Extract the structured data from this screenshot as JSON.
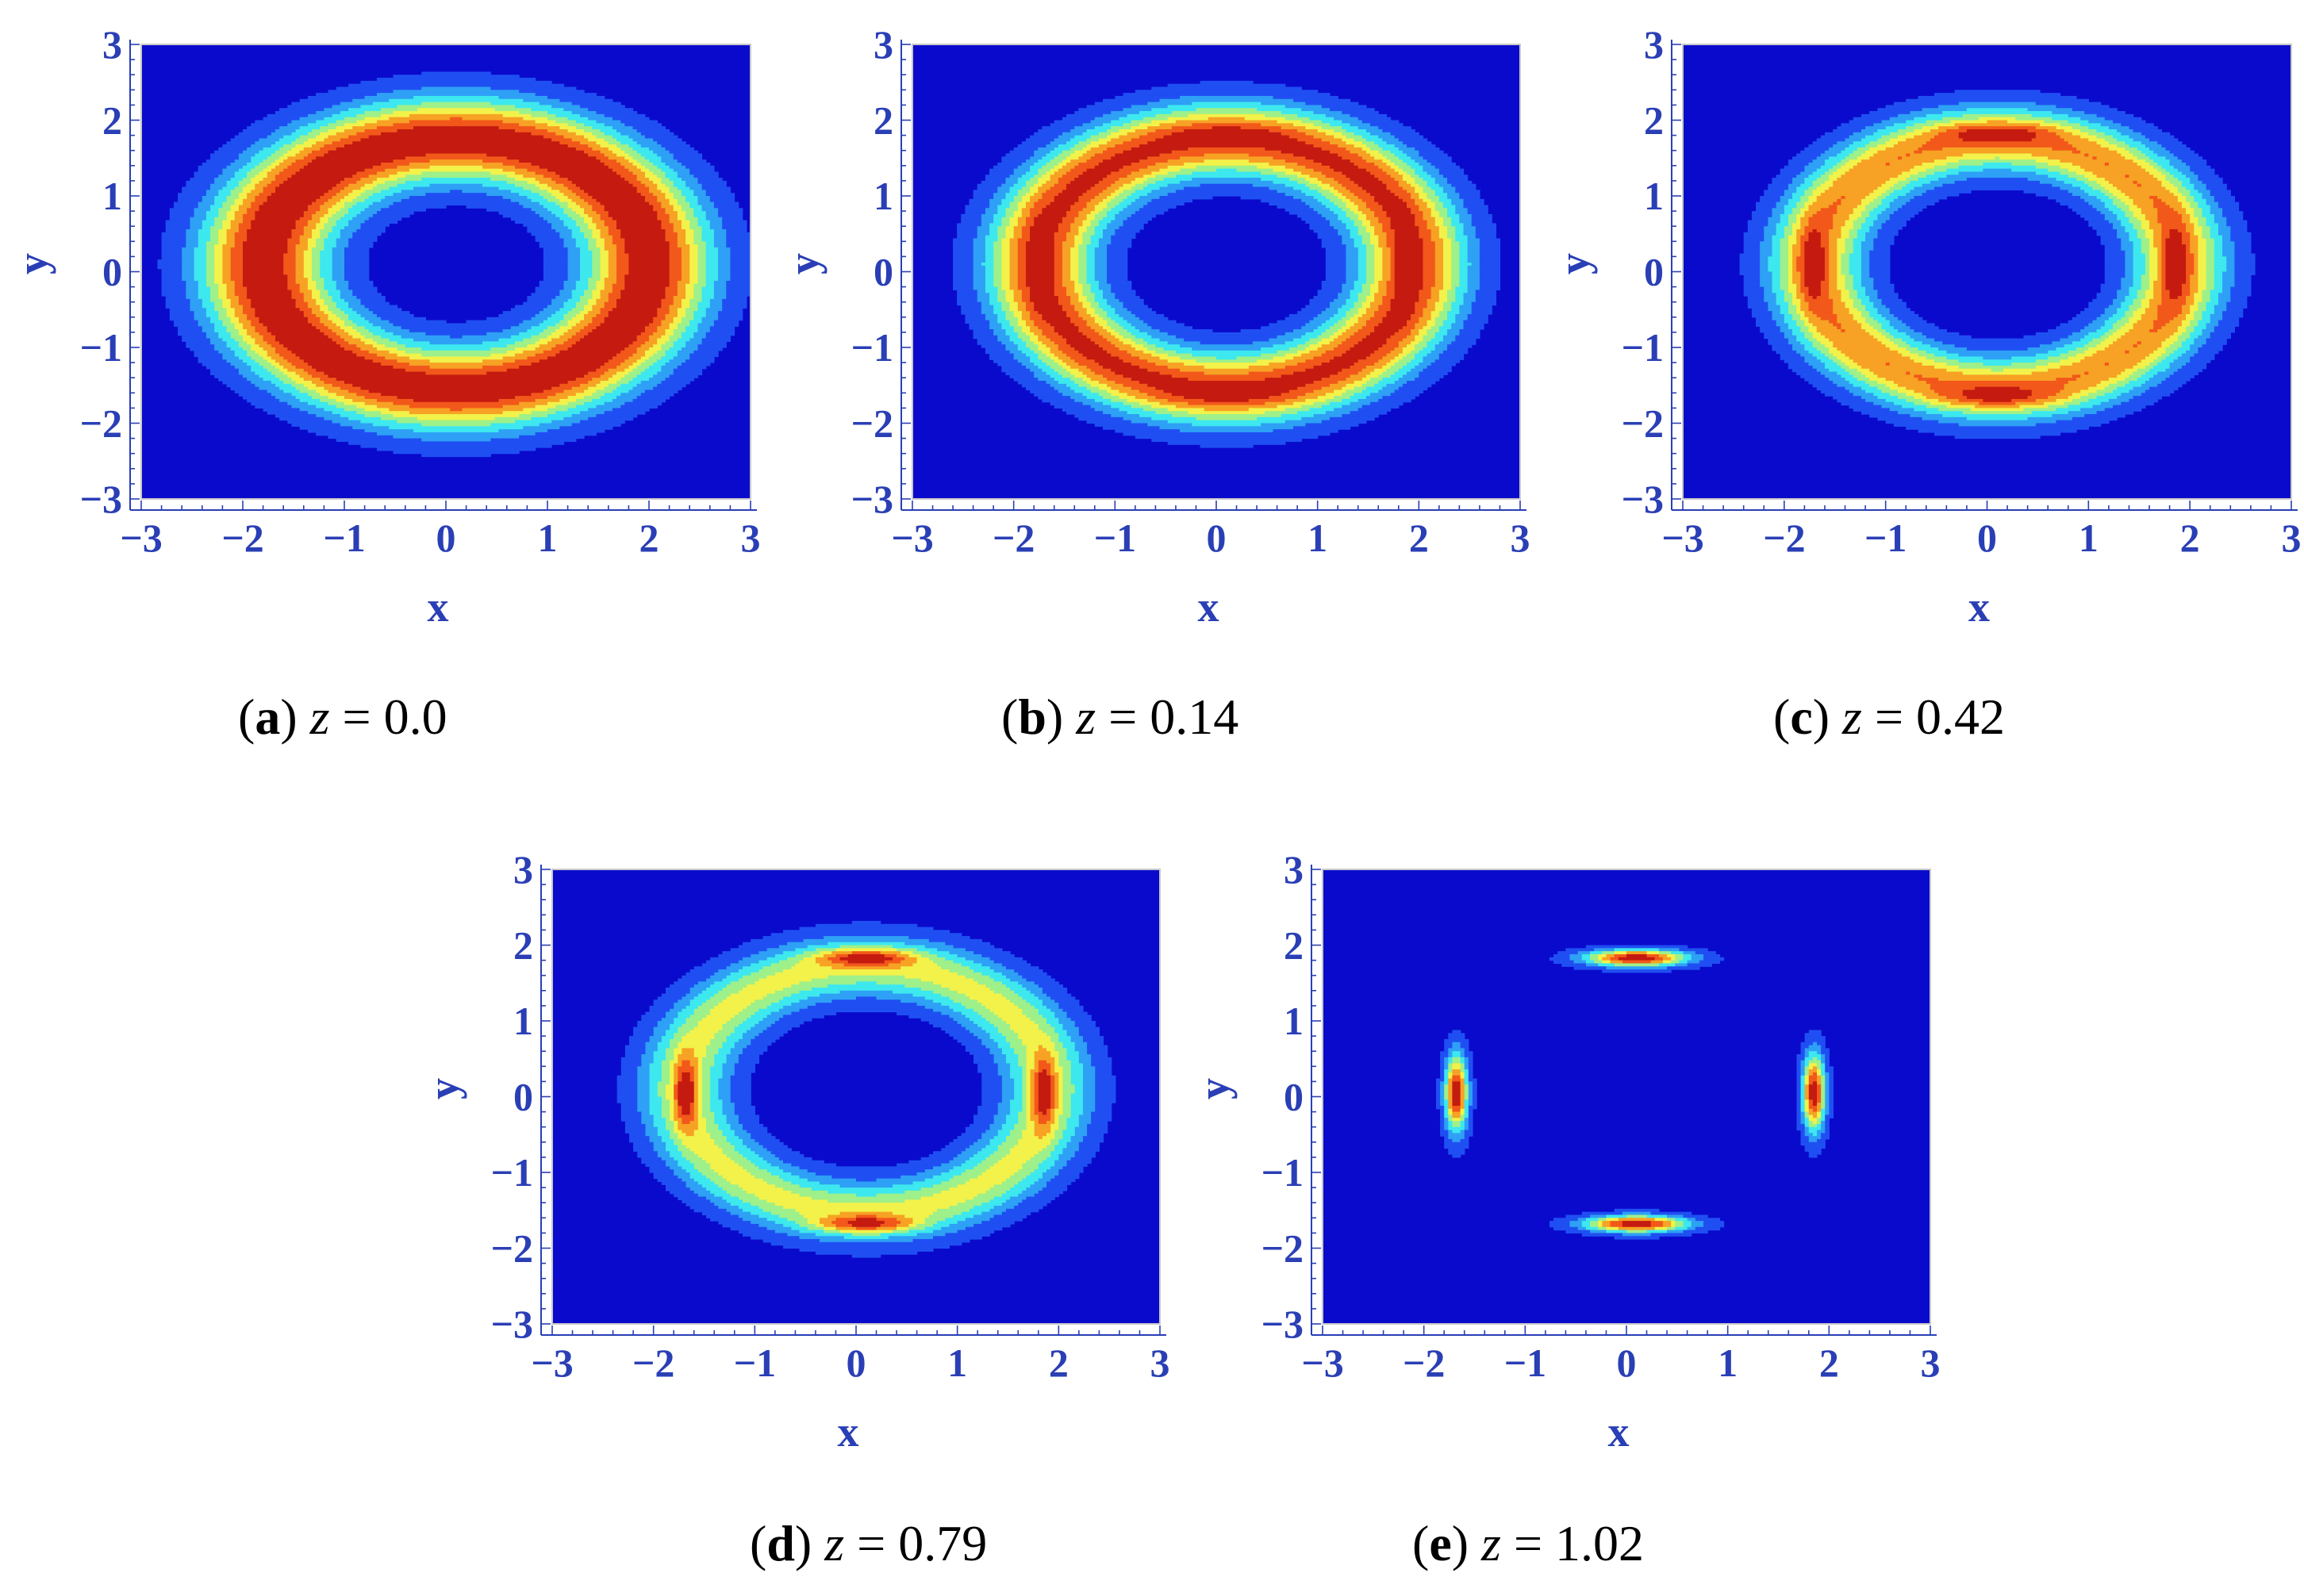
{
  "colors": {
    "background": "#0a0acc",
    "axis": "#2a3fb5",
    "tick_label": "#2a3fb5",
    "frame": "#c8c8c8",
    "levels": [
      "#0a0acc",
      "#1f4ff2",
      "#2ea0f5",
      "#3de8ee",
      "#9ef08a",
      "#f2f24a",
      "#f7a224",
      "#f2581a",
      "#c41a10"
    ]
  },
  "chart_data": [
    {
      "type": "heatmap",
      "panel": "a",
      "caption_value": "z = 0.0",
      "xlabel": "x",
      "ylabel": "y",
      "xlim": [
        -3,
        3
      ],
      "ylim": [
        -3,
        3
      ],
      "xticks": [
        "−3",
        "−2",
        "−1",
        "0",
        "1",
        "2",
        "3"
      ],
      "yticks": [
        "3",
        "2",
        "1",
        "0",
        "−1",
        "−2",
        "−3"
      ],
      "pattern": "ring",
      "ring": {
        "cx": 0.1,
        "cy": 0.1,
        "peak_radius_x": 1.9,
        "peak_radius_y": 1.65,
        "halfwidth": 0.72,
        "peak": 1.0
      },
      "lobes": []
    },
    {
      "type": "heatmap",
      "panel": "b",
      "caption_value": "z = 0.14",
      "xlabel": "x",
      "ylabel": "y",
      "xlim": [
        -3,
        3
      ],
      "ylim": [
        -3,
        3
      ],
      "xticks": [
        "−3",
        "−2",
        "−1",
        "0",
        "1",
        "2",
        "3"
      ],
      "yticks": [
        "3",
        "2",
        "1",
        "0",
        "−1",
        "−2",
        "−3"
      ],
      "pattern": "ring with dashed maxima",
      "ring": {
        "cx": 0.1,
        "cy": 0.1,
        "peak_radius_x": 1.85,
        "peak_radius_y": 1.65,
        "halfwidth": 0.62,
        "peak": 0.9
      },
      "lobes": [
        {
          "x": 0.1,
          "y": 1.83,
          "peak": 0.12,
          "sx": 0.45,
          "sy": 0.08
        },
        {
          "x": 0.1,
          "y": -1.65,
          "peak": 0.12,
          "sx": 0.45,
          "sy": 0.08
        },
        {
          "x": -1.75,
          "y": 0.1,
          "peak": 0.12,
          "sx": 0.08,
          "sy": 0.45
        },
        {
          "x": 1.85,
          "y": 0.1,
          "peak": 0.12,
          "sx": 0.08,
          "sy": 0.45
        }
      ]
    },
    {
      "type": "heatmap",
      "panel": "c",
      "caption_value": "z = 0.42",
      "xlabel": "x",
      "ylabel": "y",
      "xlim": [
        -3,
        3
      ],
      "ylim": [
        -3,
        3
      ],
      "xticks": [
        "−3",
        "−2",
        "−1",
        "0",
        "1",
        "2",
        "3"
      ],
      "yticks": [
        "3",
        "2",
        "1",
        "0",
        "−1",
        "−2",
        "−3"
      ],
      "pattern": "ring splitting into four lobes",
      "ring": {
        "cx": 0.1,
        "cy": 0.1,
        "peak_radius_x": 1.8,
        "peak_radius_y": 1.65,
        "halfwidth": 0.55,
        "peak": 0.72
      },
      "lobes": [
        {
          "x": 0.1,
          "y": 1.83,
          "peak": 0.3,
          "sx": 0.4,
          "sy": 0.1
        },
        {
          "x": 0.1,
          "y": -1.65,
          "peak": 0.3,
          "sx": 0.4,
          "sy": 0.1
        },
        {
          "x": -1.72,
          "y": 0.1,
          "peak": 0.3,
          "sx": 0.1,
          "sy": 0.4
        },
        {
          "x": 1.85,
          "y": 0.1,
          "peak": 0.3,
          "sx": 0.1,
          "sy": 0.4
        }
      ]
    },
    {
      "type": "heatmap",
      "panel": "d",
      "caption_value": "z = 0.79",
      "xlabel": "x",
      "ylabel": "y",
      "xlim": [
        -3,
        3
      ],
      "ylim": [
        -3,
        3
      ],
      "xticks": [
        "−3",
        "−2",
        "−1",
        "0",
        "1",
        "2",
        "3"
      ],
      "yticks": [
        "3",
        "2",
        "1",
        "0",
        "−1",
        "−2",
        "−3"
      ],
      "pattern": "faint ring with four localized peaks",
      "ring": {
        "cx": 0.1,
        "cy": 0.1,
        "peak_radius_x": 1.8,
        "peak_radius_y": 1.62,
        "halfwidth": 0.52,
        "peak": 0.5
      },
      "lobes": [
        {
          "x": 0.1,
          "y": 1.83,
          "peak": 0.55,
          "sx": 0.32,
          "sy": 0.08
        },
        {
          "x": 0.1,
          "y": -1.68,
          "peak": 0.55,
          "sx": 0.32,
          "sy": 0.08
        },
        {
          "x": -1.68,
          "y": 0.05,
          "peak": 0.55,
          "sx": 0.08,
          "sy": 0.32
        },
        {
          "x": 1.85,
          "y": 0.05,
          "peak": 0.55,
          "sx": 0.08,
          "sy": 0.32
        }
      ]
    },
    {
      "type": "heatmap",
      "panel": "e",
      "caption_value": "z = 1.02",
      "xlabel": "x",
      "ylabel": "y",
      "xlim": [
        -3,
        3
      ],
      "ylim": [
        -3,
        3
      ],
      "xticks": [
        "−3",
        "−2",
        "−1",
        "0",
        "1",
        "2",
        "3"
      ],
      "yticks": [
        "3",
        "2",
        "1",
        "0",
        "−1",
        "−2",
        "−3"
      ],
      "pattern": "four isolated spots",
      "ring": null,
      "lobes": [
        {
          "x": 0.1,
          "y": 1.83,
          "peak": 1.0,
          "sx": 0.32,
          "sy": 0.07
        },
        {
          "x": 0.1,
          "y": -1.68,
          "peak": 1.0,
          "sx": 0.32,
          "sy": 0.07
        },
        {
          "x": -1.68,
          "y": 0.05,
          "peak": 1.0,
          "sx": 0.07,
          "sy": 0.32
        },
        {
          "x": 1.85,
          "y": 0.05,
          "peak": 1.0,
          "sx": 0.07,
          "sy": 0.32
        }
      ]
    }
  ],
  "captions": [
    {
      "letter": "a",
      "text": "z = 0.0"
    },
    {
      "letter": "b",
      "text": "z = 0.14"
    },
    {
      "letter": "c",
      "text": "z = 0.42"
    },
    {
      "letter": "d",
      "text": "z = 0.79"
    },
    {
      "letter": "e",
      "text": "z = 1.02"
    }
  ]
}
